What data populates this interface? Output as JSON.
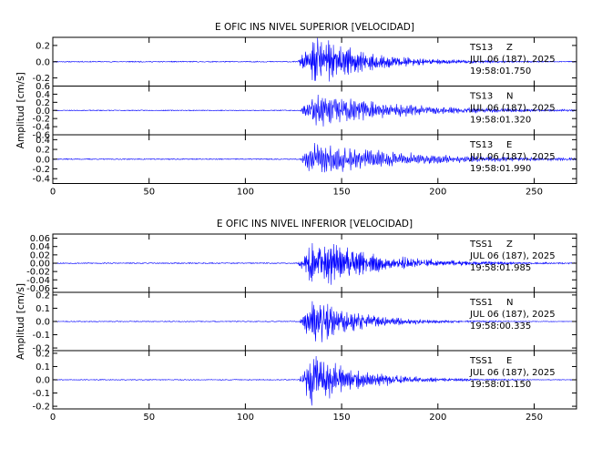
{
  "colors": {
    "trace": "#0000ff",
    "axis": "#000000",
    "background": "#ffffff"
  },
  "chart_data": [
    {
      "type": "line",
      "title": "E OFIC INS NIVEL SUPERIOR [VELOCIDAD]",
      "ylabel": "Amplitud [cm/s]",
      "xlabel": "",
      "xlim": [
        0,
        272
      ],
      "x_ticks": [
        "0",
        "50",
        "100",
        "150",
        "200",
        "250"
      ],
      "grid": false,
      "channels": [
        {
          "station": "TS13",
          "component": "Z",
          "date": "JUL 06 (187), 2025",
          "time": "19:58:01.750",
          "ylim": [
            -0.3,
            0.3
          ],
          "y_ticks": [
            "0.2",
            "0.0",
            "-0.2"
          ],
          "signal": {
            "onset": 127,
            "peak_time": 136,
            "peak": 0.35,
            "decay": 28,
            "freq": 1.6,
            "pre_noise": 0.006,
            "noise": 0.004,
            "seed": 11
          }
        },
        {
          "station": "TS13",
          "component": "N",
          "date": "JUL 06 (187), 2025",
          "time": "19:58:01.320",
          "ylim": [
            -0.6,
            0.6
          ],
          "y_ticks": [
            "0.6",
            "0.4",
            "0.2",
            "0.0",
            "-0.2",
            "-0.4",
            "-0.6"
          ],
          "signal": {
            "onset": 128,
            "peak_time": 136,
            "peak": 0.45,
            "decay": 45,
            "freq": 1.3,
            "pre_noise": 0.01,
            "noise": 0.008,
            "seed": 23
          }
        },
        {
          "station": "TS13",
          "component": "E",
          "date": "JUL 06 (187), 2025",
          "time": "19:58:01.990",
          "ylim": [
            -0.5,
            0.5
          ],
          "y_ticks": [
            "0.4",
            "0.2",
            "0.0",
            "-0.2",
            "-0.4"
          ],
          "signal": {
            "onset": 128,
            "peak_time": 135,
            "peak": 0.38,
            "decay": 50,
            "freq": 1.2,
            "pre_noise": 0.01,
            "noise": 0.008,
            "seed": 37
          }
        }
      ]
    },
    {
      "type": "line",
      "title": "E OFIC INS NIVEL INFERIOR [VELOCIDAD]",
      "ylabel": "Amplitud [cm/s]",
      "xlabel": "",
      "xlim": [
        0,
        272
      ],
      "x_ticks": [
        "0",
        "50",
        "100",
        "150",
        "200",
        "250"
      ],
      "grid": false,
      "channels": [
        {
          "station": "TSS1",
          "component": "Z",
          "date": "JUL 06 (187), 2025",
          "time": "19:58:01.985",
          "ylim": [
            -0.07,
            0.07
          ],
          "y_ticks": [
            "0.06",
            "0.04",
            "0.02",
            "0.00",
            "-0.02",
            "-0.04",
            "-0.06"
          ],
          "signal": {
            "onset": 127,
            "peak_time": 137,
            "peak": 0.068,
            "decay": 32,
            "freq": 1.7,
            "pre_noise": 0.0012,
            "noise": 0.0009,
            "seed": 53
          }
        },
        {
          "station": "TSS1",
          "component": "N",
          "date": "JUL 06 (187), 2025",
          "time": "19:58:00.335",
          "ylim": [
            -0.22,
            0.22
          ],
          "y_ticks": [
            "0.2",
            "0.1",
            "0.0",
            "-0.1",
            "-0.2"
          ],
          "signal": {
            "onset": 128,
            "peak_time": 135,
            "peak": 0.19,
            "decay": 24,
            "freq": 1.5,
            "pre_noise": 0.003,
            "noise": 0.002,
            "seed": 71
          }
        },
        {
          "station": "TSS1",
          "component": "E",
          "date": "JUL 06 (187), 2025",
          "time": "19:58:01.150",
          "ylim": [
            -0.22,
            0.22
          ],
          "y_ticks": [
            "0.2",
            "0.1",
            "0.0",
            "-0.1",
            "-0.2"
          ],
          "signal": {
            "onset": 128,
            "peak_time": 134,
            "peak": 0.21,
            "decay": 26,
            "freq": 1.5,
            "pre_noise": 0.003,
            "noise": 0.002,
            "seed": 89
          }
        }
      ]
    }
  ]
}
